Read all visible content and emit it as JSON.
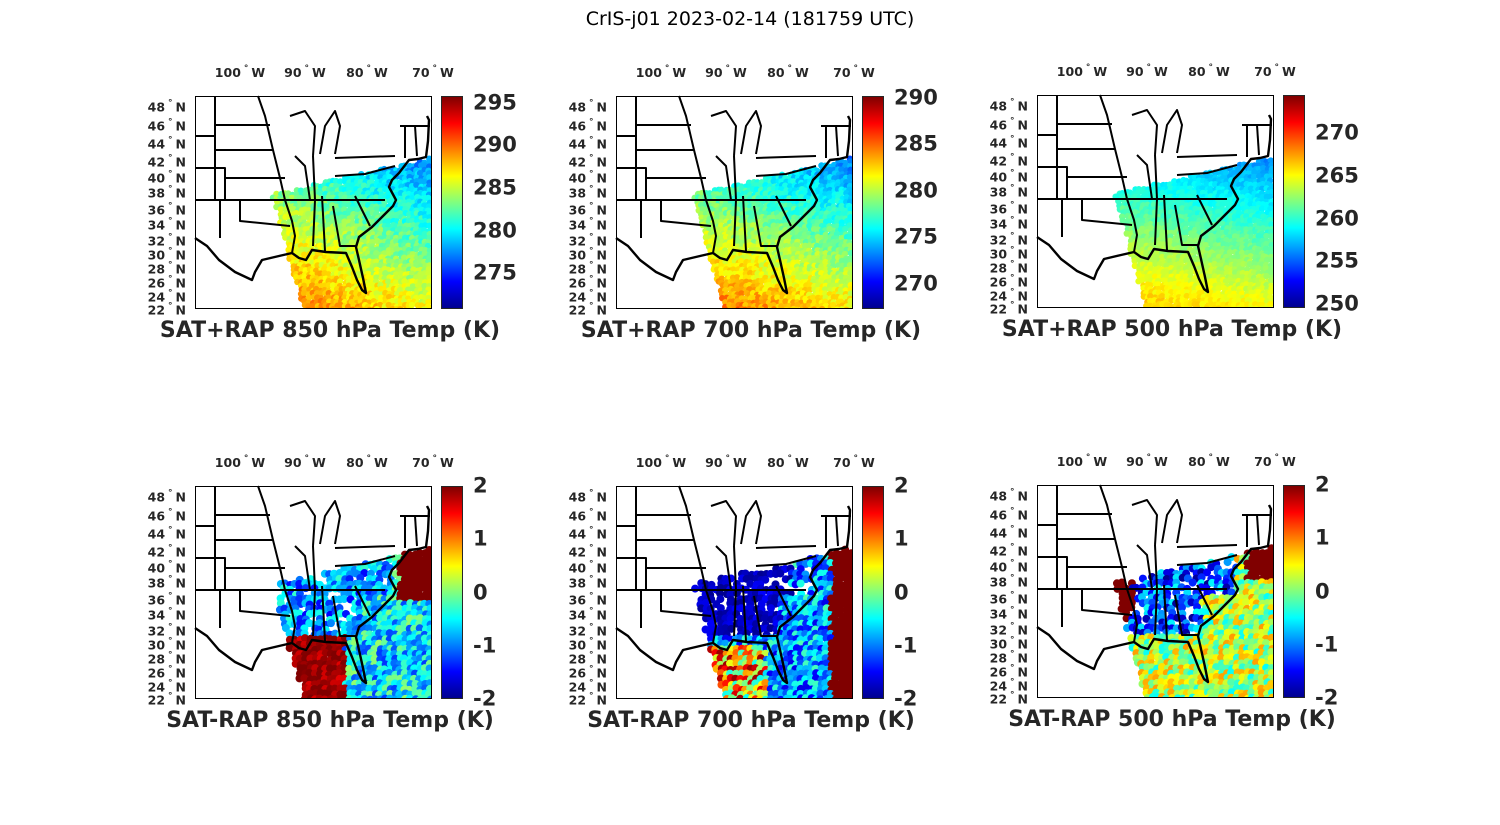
{
  "title": "CrIS-j01 2023-02-14 (181759 UTC)",
  "lon_labels": [
    {
      "value": "100",
      "dir": "W"
    },
    {
      "value": "90",
      "dir": "W"
    },
    {
      "value": "80",
      "dir": "W"
    },
    {
      "value": "70",
      "dir": "W"
    }
  ],
  "lat_labels": [
    {
      "value": "48",
      "dir": "N"
    },
    {
      "value": "46",
      "dir": "N"
    },
    {
      "value": "44",
      "dir": "N"
    },
    {
      "value": "42",
      "dir": "N"
    },
    {
      "value": "40",
      "dir": "N"
    },
    {
      "value": "38",
      "dir": "N"
    },
    {
      "value": "36",
      "dir": "N"
    },
    {
      "value": "34",
      "dir": "N"
    },
    {
      "value": "32",
      "dir": "N"
    },
    {
      "value": "30",
      "dir": "N"
    },
    {
      "value": "28",
      "dir": "N"
    },
    {
      "value": "26",
      "dir": "N"
    },
    {
      "value": "24",
      "dir": "N"
    },
    {
      "value": "22",
      "dir": "N"
    }
  ],
  "degree_symbol": "°",
  "colormap": [
    "#00008f",
    "#0000ff",
    "#00ffff",
    "#ffff00",
    "#ff0000",
    "#800000"
  ],
  "panels": [
    {
      "title": "SAT+RAP 850 hPa Temp (K)",
      "clim": [
        270.8,
        295.8
      ],
      "ticks": [
        "275",
        "280",
        "285",
        "290",
        "295"
      ],
      "tick_values": [
        275,
        280,
        285,
        290,
        295
      ]
    },
    {
      "title": "SAT+RAP 700 hPa Temp (K)",
      "clim": [
        267.3,
        290.2
      ],
      "ticks": [
        "270",
        "275",
        "280",
        "285",
        "290"
      ],
      "tick_values": [
        270,
        275,
        280,
        285,
        290
      ]
    },
    {
      "title": "SAT+RAP 500 hPa Temp (K)",
      "clim": [
        249.5,
        274.5
      ],
      "ticks": [
        "250",
        "255",
        "260",
        "265",
        "270"
      ],
      "tick_values": [
        250,
        255,
        260,
        265,
        270
      ]
    },
    {
      "title": "SAT-RAP 850 hPa Temp (K)",
      "clim": [
        -2,
        2
      ],
      "ticks": [
        "-2",
        "-1",
        "0",
        "1",
        "2"
      ],
      "tick_values": [
        -2,
        -1,
        0,
        1,
        2
      ]
    },
    {
      "title": "SAT-RAP 700 hPa Temp (K)",
      "clim": [
        -2,
        2
      ],
      "ticks": [
        "-2",
        "-1",
        "0",
        "1",
        "2"
      ],
      "tick_values": [
        -2,
        -1,
        0,
        1,
        2
      ]
    },
    {
      "title": "SAT-RAP 500 hPa Temp (K)",
      "clim": [
        -2,
        2
      ],
      "ticks": [
        "-2",
        "-1",
        "0",
        "1",
        "2"
      ],
      "tick_values": [
        -2,
        -1,
        0,
        1,
        2
      ]
    }
  ]
}
